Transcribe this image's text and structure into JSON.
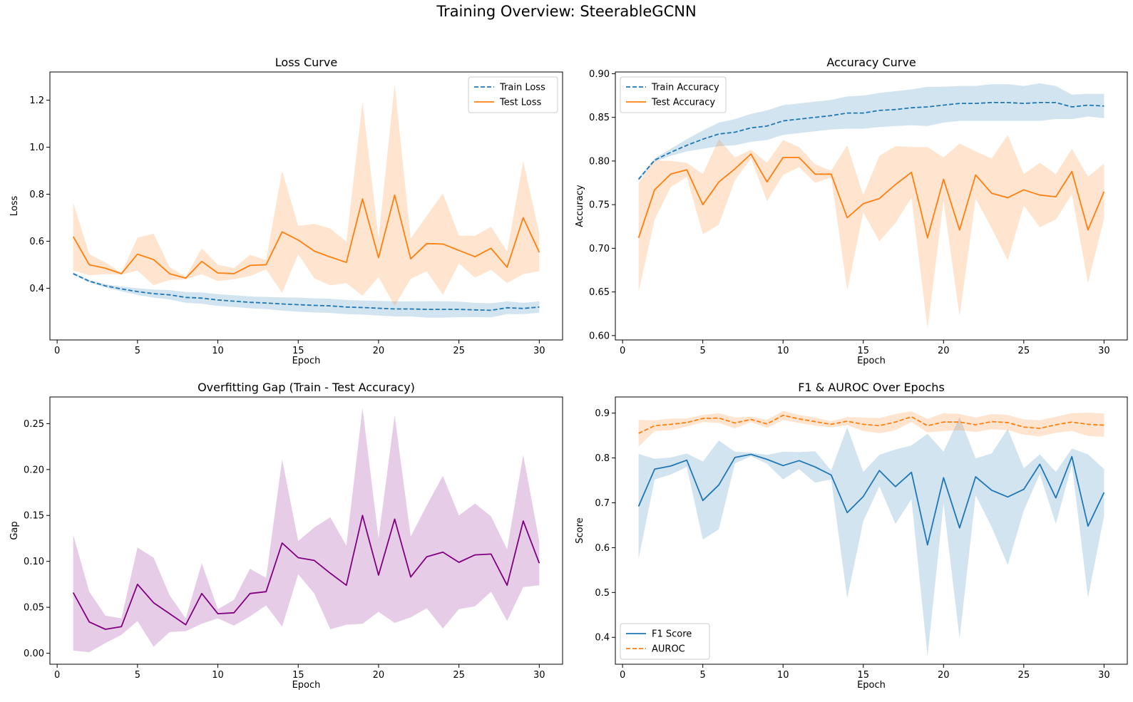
{
  "figure": {
    "title": "Training Overview: SteerableGCNN"
  },
  "chart_data": [
    {
      "type": "line",
      "title": "Loss Curve",
      "xlabel": "Epoch",
      "ylabel": "Loss",
      "xlim": [
        -0.45,
        31.45
      ],
      "ylim": [
        0.18,
        1.32
      ],
      "xticks": [
        0,
        5,
        10,
        15,
        20,
        25,
        30
      ],
      "yticks": [
        0.4,
        0.6,
        0.8,
        1.0,
        1.2
      ],
      "ytick_labels": [
        "0.4",
        "0.6",
        "0.8",
        "1.0",
        "1.2"
      ],
      "legend_loc": "upper-right",
      "grid": false,
      "x": [
        1,
        2,
        3,
        4,
        5,
        6,
        7,
        8,
        9,
        10,
        11,
        12,
        13,
        14,
        15,
        16,
        17,
        18,
        19,
        20,
        21,
        22,
        23,
        24,
        25,
        26,
        27,
        28,
        29,
        30
      ],
      "series": [
        {
          "name": "Train Loss",
          "color": "#1f77b4",
          "dash": true,
          "values": [
            0.462,
            0.43,
            0.41,
            0.397,
            0.386,
            0.377,
            0.372,
            0.361,
            0.358,
            0.35,
            0.345,
            0.34,
            0.337,
            0.333,
            0.33,
            0.327,
            0.325,
            0.32,
            0.318,
            0.315,
            0.312,
            0.312,
            0.31,
            0.31,
            0.31,
            0.308,
            0.306,
            0.317,
            0.314,
            0.32
          ],
          "lower": [
            0.457,
            0.425,
            0.403,
            0.387,
            0.372,
            0.36,
            0.352,
            0.338,
            0.334,
            0.325,
            0.32,
            0.315,
            0.311,
            0.305,
            0.3,
            0.297,
            0.295,
            0.29,
            0.288,
            0.284,
            0.28,
            0.28,
            0.275,
            0.275,
            0.277,
            0.278,
            0.276,
            0.29,
            0.29,
            0.296
          ],
          "upper": [
            0.467,
            0.435,
            0.417,
            0.407,
            0.4,
            0.394,
            0.392,
            0.384,
            0.382,
            0.375,
            0.37,
            0.365,
            0.363,
            0.361,
            0.36,
            0.357,
            0.355,
            0.35,
            0.348,
            0.346,
            0.344,
            0.344,
            0.345,
            0.345,
            0.343,
            0.338,
            0.336,
            0.344,
            0.338,
            0.344
          ]
        },
        {
          "name": "Test Loss",
          "color": "#ff7f0e",
          "dash": false,
          "values": [
            0.62,
            0.5,
            0.485,
            0.462,
            0.545,
            0.522,
            0.462,
            0.443,
            0.514,
            0.465,
            0.462,
            0.497,
            0.5,
            0.64,
            0.605,
            0.558,
            0.533,
            0.51,
            0.78,
            0.53,
            0.796,
            0.525,
            0.59,
            0.588,
            0.561,
            0.534,
            0.57,
            0.489,
            0.7,
            0.553
          ],
          "lower": [
            0.475,
            0.455,
            0.46,
            0.458,
            0.475,
            0.413,
            0.435,
            0.438,
            0.46,
            0.43,
            0.438,
            0.452,
            0.48,
            0.38,
            0.545,
            0.442,
            0.412,
            0.422,
            0.368,
            0.448,
            0.325,
            0.44,
            0.472,
            0.372,
            0.505,
            0.445,
            0.478,
            0.422,
            0.46,
            0.472
          ],
          "upper": [
            0.765,
            0.545,
            0.51,
            0.466,
            0.615,
            0.632,
            0.49,
            0.448,
            0.57,
            0.5,
            0.486,
            0.542,
            0.52,
            0.9,
            0.665,
            0.674,
            0.654,
            0.598,
            1.192,
            0.612,
            1.267,
            0.612,
            0.708,
            0.804,
            0.624,
            0.623,
            0.662,
            0.556,
            0.94,
            0.634
          ]
        }
      ]
    },
    {
      "type": "line",
      "title": "Accuracy Curve",
      "xlabel": "Epoch",
      "ylabel": "Accuracy",
      "xlim": [
        -0.45,
        31.45
      ],
      "ylim": [
        0.595,
        0.902
      ],
      "xticks": [
        0,
        5,
        10,
        15,
        20,
        25,
        30
      ],
      "yticks": [
        0.6,
        0.65,
        0.7,
        0.75,
        0.8,
        0.85,
        0.9
      ],
      "ytick_labels": [
        "0.60",
        "0.65",
        "0.70",
        "0.75",
        "0.80",
        "0.85",
        "0.90"
      ],
      "legend_loc": "upper-left",
      "grid": false,
      "x": [
        1,
        2,
        3,
        4,
        5,
        6,
        7,
        8,
        9,
        10,
        11,
        12,
        13,
        14,
        15,
        16,
        17,
        18,
        19,
        20,
        21,
        22,
        23,
        24,
        25,
        26,
        27,
        28,
        29,
        30
      ],
      "series": [
        {
          "name": "Train Accuracy",
          "color": "#1f77b4",
          "dash": true,
          "values": [
            0.779,
            0.801,
            0.81,
            0.818,
            0.825,
            0.831,
            0.833,
            0.838,
            0.84,
            0.846,
            0.848,
            0.85,
            0.852,
            0.855,
            0.855,
            0.858,
            0.859,
            0.861,
            0.862,
            0.864,
            0.866,
            0.866,
            0.867,
            0.867,
            0.866,
            0.867,
            0.867,
            0.862,
            0.864,
            0.863
          ],
          "lower": [
            0.777,
            0.799,
            0.806,
            0.811,
            0.814,
            0.817,
            0.818,
            0.822,
            0.824,
            0.83,
            0.832,
            0.834,
            0.836,
            0.837,
            0.837,
            0.839,
            0.84,
            0.841,
            0.84,
            0.844,
            0.846,
            0.846,
            0.846,
            0.846,
            0.846,
            0.846,
            0.848,
            0.848,
            0.851,
            0.849
          ],
          "upper": [
            0.781,
            0.803,
            0.814,
            0.825,
            0.835,
            0.844,
            0.848,
            0.854,
            0.858,
            0.864,
            0.866,
            0.868,
            0.87,
            0.874,
            0.875,
            0.878,
            0.88,
            0.882,
            0.885,
            0.885,
            0.886,
            0.886,
            0.888,
            0.888,
            0.886,
            0.889,
            0.886,
            0.876,
            0.877,
            0.877
          ]
        },
        {
          "name": "Test Accuracy",
          "color": "#ff7f0e",
          "dash": false,
          "values": [
            0.712,
            0.767,
            0.785,
            0.79,
            0.75,
            0.776,
            0.791,
            0.808,
            0.776,
            0.804,
            0.804,
            0.785,
            0.785,
            0.735,
            0.751,
            0.757,
            0.773,
            0.787,
            0.712,
            0.779,
            0.721,
            0.784,
            0.763,
            0.758,
            0.767,
            0.761,
            0.759,
            0.788,
            0.721,
            0.765
          ],
          "lower": [
            0.65,
            0.733,
            0.77,
            0.782,
            0.716,
            0.727,
            0.778,
            0.803,
            0.754,
            0.784,
            0.793,
            0.775,
            0.781,
            0.652,
            0.741,
            0.708,
            0.729,
            0.758,
            0.608,
            0.754,
            0.622,
            0.757,
            0.723,
            0.686,
            0.749,
            0.724,
            0.733,
            0.762,
            0.66,
            0.734
          ],
          "upper": [
            0.775,
            0.801,
            0.8,
            0.798,
            0.785,
            0.825,
            0.804,
            0.813,
            0.798,
            0.824,
            0.816,
            0.796,
            0.789,
            0.818,
            0.761,
            0.806,
            0.817,
            0.816,
            0.816,
            0.804,
            0.82,
            0.811,
            0.803,
            0.83,
            0.785,
            0.798,
            0.785,
            0.814,
            0.782,
            0.797
          ]
        }
      ]
    },
    {
      "type": "line",
      "title": "Overfitting Gap (Train - Test Accuracy)",
      "xlabel": "Epoch",
      "ylabel": "Gap",
      "xlim": [
        -0.45,
        31.45
      ],
      "ylim": [
        -0.012,
        0.279
      ],
      "xticks": [
        0,
        5,
        10,
        15,
        20,
        25,
        30
      ],
      "yticks": [
        0.0,
        0.05,
        0.1,
        0.15,
        0.2,
        0.25
      ],
      "ytick_labels": [
        "0.00",
        "0.05",
        "0.10",
        "0.15",
        "0.20",
        "0.25"
      ],
      "grid": false,
      "x": [
        1,
        2,
        3,
        4,
        5,
        6,
        7,
        8,
        9,
        10,
        11,
        12,
        13,
        14,
        15,
        16,
        17,
        18,
        19,
        20,
        21,
        22,
        23,
        24,
        25,
        26,
        27,
        28,
        29,
        30
      ],
      "series": [
        {
          "color": "#800080",
          "dash": false,
          "values": [
            0.066,
            0.034,
            0.026,
            0.029,
            0.075,
            0.055,
            0.043,
            0.031,
            0.065,
            0.043,
            0.044,
            0.065,
            0.067,
            0.12,
            0.104,
            0.101,
            0.087,
            0.074,
            0.15,
            0.085,
            0.146,
            0.083,
            0.105,
            0.11,
            0.099,
            0.107,
            0.108,
            0.074,
            0.144,
            0.098
          ],
          "lower": [
            0.003,
            0.001,
            0.011,
            0.02,
            0.035,
            0.007,
            0.023,
            0.024,
            0.032,
            0.038,
            0.03,
            0.04,
            0.052,
            0.029,
            0.086,
            0.065,
            0.026,
            0.031,
            0.032,
            0.045,
            0.033,
            0.039,
            0.049,
            0.027,
            0.048,
            0.051,
            0.067,
            0.035,
            0.072,
            0.074
          ],
          "upper": [
            0.129,
            0.067,
            0.041,
            0.038,
            0.115,
            0.104,
            0.063,
            0.038,
            0.098,
            0.048,
            0.058,
            0.092,
            0.082,
            0.211,
            0.122,
            0.137,
            0.148,
            0.117,
            0.267,
            0.125,
            0.259,
            0.127,
            0.161,
            0.193,
            0.15,
            0.163,
            0.149,
            0.113,
            0.216,
            0.122
          ]
        }
      ]
    },
    {
      "type": "line",
      "title": "F1 & AUROC Over Epochs",
      "xlabel": "Epoch",
      "ylabel": "Score",
      "xlim": [
        -0.45,
        31.45
      ],
      "ylim": [
        0.34,
        0.936
      ],
      "xticks": [
        0,
        5,
        10,
        15,
        20,
        25,
        30
      ],
      "yticks": [
        0.4,
        0.5,
        0.6,
        0.7,
        0.8,
        0.9
      ],
      "ytick_labels": [
        "0.4",
        "0.5",
        "0.6",
        "0.7",
        "0.8",
        "0.9"
      ],
      "legend_loc": "lower-left",
      "grid": false,
      "x": [
        1,
        2,
        3,
        4,
        5,
        6,
        7,
        8,
        9,
        10,
        11,
        12,
        13,
        14,
        15,
        16,
        17,
        18,
        19,
        20,
        21,
        22,
        23,
        24,
        25,
        26,
        27,
        28,
        29,
        30
      ],
      "series": [
        {
          "name": "F1 Score",
          "color": "#1f77b4",
          "dash": false,
          "values": [
            0.692,
            0.775,
            0.782,
            0.795,
            0.705,
            0.74,
            0.801,
            0.808,
            0.797,
            0.783,
            0.794,
            0.78,
            0.762,
            0.678,
            0.714,
            0.772,
            0.736,
            0.768,
            0.606,
            0.756,
            0.644,
            0.758,
            0.728,
            0.713,
            0.73,
            0.786,
            0.711,
            0.803,
            0.648,
            0.723
          ],
          "lower": [
            0.575,
            0.752,
            0.763,
            0.78,
            0.618,
            0.641,
            0.788,
            0.804,
            0.787,
            0.752,
            0.775,
            0.745,
            0.752,
            0.487,
            0.659,
            0.737,
            0.653,
            0.708,
            0.358,
            0.698,
            0.397,
            0.717,
            0.646,
            0.561,
            0.683,
            0.764,
            0.653,
            0.785,
            0.488,
            0.671
          ],
          "upper": [
            0.809,
            0.798,
            0.801,
            0.81,
            0.792,
            0.839,
            0.814,
            0.812,
            0.807,
            0.814,
            0.813,
            0.815,
            0.772,
            0.869,
            0.769,
            0.807,
            0.819,
            0.828,
            0.854,
            0.814,
            0.891,
            0.799,
            0.81,
            0.865,
            0.777,
            0.808,
            0.769,
            0.821,
            0.808,
            0.775
          ]
        },
        {
          "name": "AUROC",
          "color": "#ff7f0e",
          "dash": true,
          "values": [
            0.855,
            0.872,
            0.875,
            0.879,
            0.888,
            0.889,
            0.878,
            0.886,
            0.876,
            0.895,
            0.887,
            0.881,
            0.875,
            0.882,
            0.875,
            0.872,
            0.88,
            0.892,
            0.872,
            0.88,
            0.88,
            0.874,
            0.881,
            0.879,
            0.869,
            0.866,
            0.874,
            0.88,
            0.875,
            0.873
          ],
          "lower": [
            0.825,
            0.86,
            0.862,
            0.87,
            0.88,
            0.878,
            0.866,
            0.88,
            0.867,
            0.885,
            0.878,
            0.872,
            0.868,
            0.873,
            0.86,
            0.855,
            0.862,
            0.88,
            0.857,
            0.86,
            0.862,
            0.858,
            0.864,
            0.862,
            0.852,
            0.848,
            0.856,
            0.86,
            0.849,
            0.847
          ],
          "upper": [
            0.885,
            0.884,
            0.888,
            0.888,
            0.896,
            0.9,
            0.89,
            0.892,
            0.885,
            0.905,
            0.896,
            0.89,
            0.882,
            0.891,
            0.89,
            0.889,
            0.898,
            0.904,
            0.887,
            0.9,
            0.898,
            0.89,
            0.898,
            0.896,
            0.886,
            0.884,
            0.892,
            0.9,
            0.901,
            0.899
          ]
        }
      ]
    }
  ]
}
